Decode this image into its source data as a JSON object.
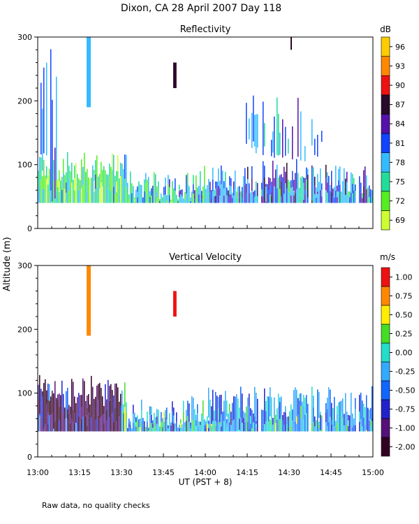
{
  "figure": {
    "title": "Dixon, CA 28 April 2007  Day 118",
    "shared_ylabel": "Altitude (m)",
    "xlabel": "UT  (PST + 8)",
    "footnote": "Raw data, no quality checks"
  },
  "chart_data": [
    {
      "type": "heatmap",
      "title": "Reflectivity",
      "xlim_minutes": [
        0,
        120
      ],
      "x_tick_labels": [
        "13:00",
        "13:15",
        "13:30",
        "13:45",
        "14:00",
        "14:15",
        "14:30",
        "14:45",
        "15:00"
      ],
      "ylim": [
        0,
        300
      ],
      "y_ticks": [
        0,
        100,
        200,
        300
      ],
      "ylabel": "Altitude (m)",
      "colorbar": {
        "unit": "dB",
        "labels": [
          "69",
          "72",
          "75",
          "78",
          "81",
          "84",
          "87",
          "90",
          "93",
          "96"
        ],
        "colors": [
          "#ccff33",
          "#55ee22",
          "#22dd99",
          "#33bbff",
          "#1144ff",
          "#5511aa",
          "#2a0a2a",
          "#ee1111",
          "#ff8800",
          "#ffcc00"
        ]
      },
      "background_layer_m": [
        40,
        100
      ],
      "data_gaps_minutes": [
        [
          79,
          80
        ],
        [
          97,
          98
        ],
        [
          102,
          103
        ],
        [
          114,
          115
        ]
      ],
      "features": [
        {
          "name": "early plume",
          "x_minutes": [
            0,
            9
          ],
          "y_m": [
            40,
            290
          ],
          "dominant": "81"
        },
        {
          "name": "tall echo 13:17",
          "x_minutes": [
            17.5,
            18.5
          ],
          "y_m": [
            190,
            300
          ],
          "dominant": "78"
        },
        {
          "name": "dark column 13:48",
          "x_minutes": [
            48.5,
            49.2
          ],
          "y_m": [
            220,
            260
          ],
          "dominant": "87"
        },
        {
          "name": "tall echo 14:31",
          "x_minutes": [
            90.5,
            91.0
          ],
          "y_m": [
            280,
            300
          ],
          "dominant": "87"
        },
        {
          "name": "mid plumes 14:15-14:40",
          "x_minutes": [
            73,
            102
          ],
          "y_m": [
            100,
            200
          ],
          "dominant": "81"
        },
        {
          "name": "strong layer 14:20-14:45",
          "x_minutes": [
            80,
            105
          ],
          "y_m": [
            40,
            100
          ],
          "dominant": "84"
        }
      ]
    },
    {
      "type": "heatmap",
      "title": "Vertical Velocity",
      "xlim_minutes": [
        0,
        120
      ],
      "x_tick_labels": [
        "13:00",
        "13:15",
        "13:30",
        "13:45",
        "14:00",
        "14:15",
        "14:30",
        "14:45",
        "15:00"
      ],
      "xlabel": "UT  (PST + 8)",
      "ylim": [
        0,
        300
      ],
      "y_ticks": [
        0,
        100,
        200,
        300
      ],
      "ylabel": "Altitude (m)",
      "colorbar": {
        "unit": "m/s",
        "labels": [
          "-2.00",
          "-1.00",
          "-0.75",
          "-0.50",
          "-0.25",
          "0.00",
          "0.25",
          "0.50",
          "0.75",
          "1.00"
        ],
        "colors": [
          "#330022",
          "#551177",
          "#2222cc",
          "#1166ff",
          "#33aaff",
          "#22ddcc",
          "#44dd22",
          "#ffee00",
          "#ff8800",
          "#ee1111"
        ]
      },
      "background_layer_m": [
        40,
        100
      ],
      "data_gaps_minutes": [
        [
          79,
          80
        ],
        [
          97,
          98
        ],
        [
          102,
          103
        ],
        [
          114,
          115
        ]
      ],
      "features": [
        {
          "name": "strong downdraft 13:00-13:30",
          "x_minutes": [
            0,
            30
          ],
          "y_m": [
            40,
            120
          ],
          "dominant": "-1.00"
        },
        {
          "name": "updraft 13:17",
          "x_minutes": [
            17.5,
            18.5
          ],
          "y_m": [
            190,
            300
          ],
          "dominant": "0.75"
        },
        {
          "name": "red column 13:48",
          "x_minutes": [
            48.5,
            49.2
          ],
          "y_m": [
            220,
            260
          ],
          "dominant": "1.00"
        },
        {
          "name": "mixed layer 14:00-15:00",
          "x_minutes": [
            60,
            120
          ],
          "y_m": [
            40,
            100
          ],
          "dominant": "-0.25"
        }
      ]
    }
  ]
}
